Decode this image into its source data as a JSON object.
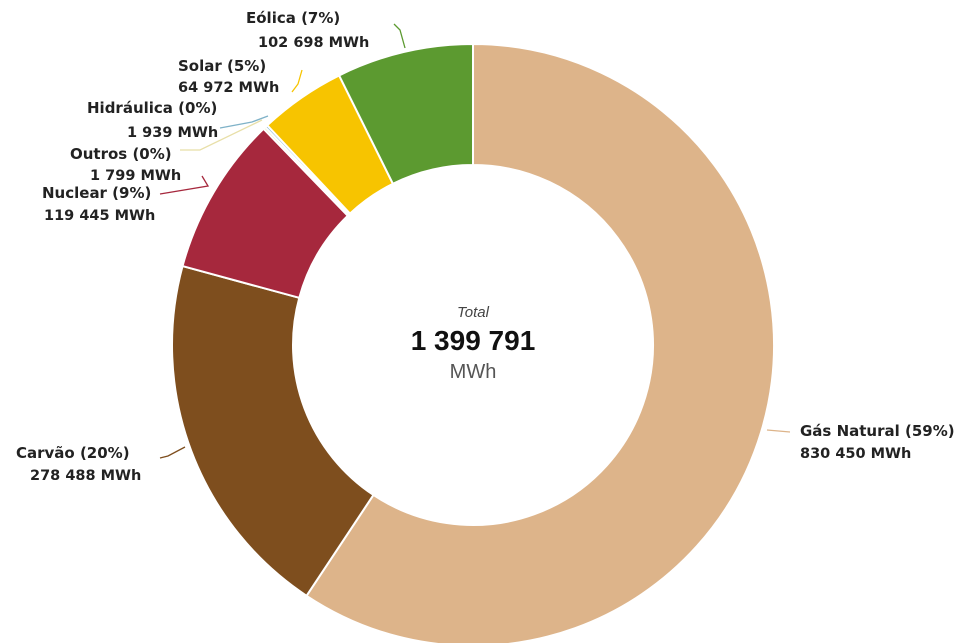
{
  "chart_data": {
    "type": "pie",
    "donut": true,
    "center": {
      "label": "Total",
      "value": "1 399 791",
      "unit": "MWh"
    },
    "slices": [
      {
        "name": "Gás Natural",
        "percent_label": "(59%)",
        "value": 830450,
        "value_label": "830 450 MWh",
        "color": "#DDB48A"
      },
      {
        "name": "Carvão",
        "percent_label": "(20%)",
        "value": 278488,
        "value_label": "278 488 MWh",
        "color": "#7E4E1E"
      },
      {
        "name": "Nuclear",
        "percent_label": "(9%)",
        "value": 119445,
        "value_label": "119 445 MWh",
        "color": "#A6283D"
      },
      {
        "name": "Outros",
        "percent_label": "(0%)",
        "value": 1799,
        "value_label": "1 799 MWh",
        "color": "#E8DFA8"
      },
      {
        "name": "Hidráulica",
        "percent_label": "(0%)",
        "value": 1939,
        "value_label": "1 939 MWh",
        "color": "#7FB2C8"
      },
      {
        "name": "Solar",
        "percent_label": "(5%)",
        "value": 64972,
        "value_label": "64 972 MWh",
        "color": "#F7C400"
      },
      {
        "name": "Eólica",
        "percent_label": "(7%)",
        "value": 102698,
        "value_label": "102 698 MWh",
        "color": "#5C9A30"
      }
    ]
  }
}
